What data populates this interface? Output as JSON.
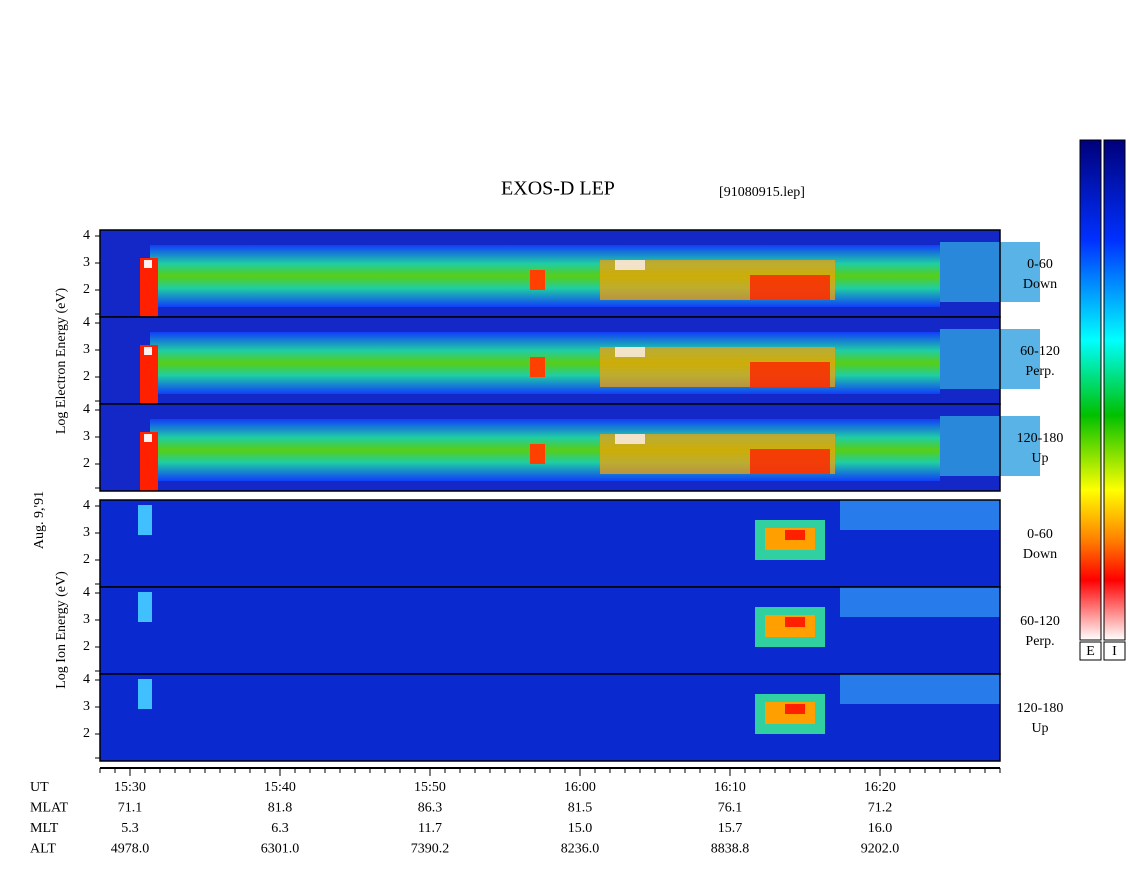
{
  "title": "EXOS-D LEP",
  "file": "[91080915.lep]",
  "y_labels": {
    "electron": "Log Electron Energy (eV)",
    "date": "Aug. 9,'91",
    "ion": "Log Ion Energy (eV)"
  },
  "panels": [
    {
      "species": "electron",
      "ticks": [
        "4",
        "3",
        "2"
      ],
      "label": [
        "0-60",
        "Down"
      ]
    },
    {
      "species": "electron",
      "ticks": [
        "4",
        "3",
        "2"
      ],
      "label": [
        "60-120",
        "Perp."
      ]
    },
    {
      "species": "electron",
      "ticks": [
        "4",
        "3",
        "2"
      ],
      "label": [
        "120-180",
        "Up"
      ]
    },
    {
      "species": "ion",
      "ticks": [
        "4",
        "3",
        "2"
      ],
      "label": [
        "0-60",
        "Down"
      ]
    },
    {
      "species": "ion",
      "ticks": [
        "4",
        "3",
        "2"
      ],
      "label": [
        "60-120",
        "Perp."
      ]
    },
    {
      "species": "ion",
      "ticks": [
        "4",
        "3",
        "2"
      ],
      "label": [
        "120-180",
        "Up"
      ]
    }
  ],
  "colorbars": [
    "E",
    "I"
  ],
  "orbit": [
    {
      "name": "UT",
      "values": [
        "15:30",
        "15:40",
        "15:50",
        "16:00",
        "16:10",
        "16:20"
      ]
    },
    {
      "name": "MLAT",
      "values": [
        "71.1",
        "81.8",
        "86.3",
        "81.5",
        "76.1",
        "71.2"
      ]
    },
    {
      "name": "MLT",
      "values": [
        "5.3",
        "6.3",
        "11.7",
        "15.0",
        "15.7",
        "16.0"
      ]
    },
    {
      "name": "ALT",
      "values": [
        "4978.0",
        "6301.0",
        "7390.2",
        "8236.0",
        "8838.8",
        "9202.0"
      ]
    }
  ]
}
